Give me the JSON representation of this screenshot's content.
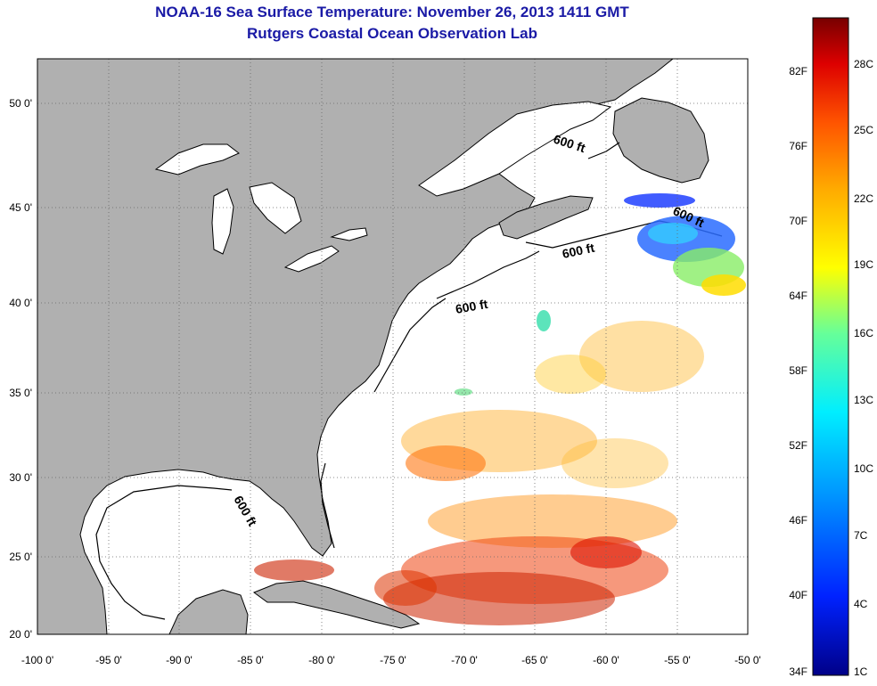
{
  "title_line1": "NOAA-16 Sea Surface Temperature:  November 26, 2013 1411 GMT",
  "title_line2": "Rutgers Coastal Ocean Observation Lab",
  "map": {
    "lon_ticks": [
      "-100 0'",
      "-95 0'",
      "-90 0'",
      "-85 0'",
      "-80 0'",
      "-75 0'",
      "-70 0'",
      "-65 0'",
      "-60 0'",
      "-55 0'",
      "-50 0'"
    ],
    "lat_ticks": [
      "50 0'",
      "45 0'",
      "40 0'",
      "35 0'",
      "30 0'",
      "25 0'",
      "20 0'"
    ],
    "contour_labels": [
      "600 ft",
      "600 ft",
      "600 ft",
      "600 ft",
      "600 ft"
    ],
    "land_color": "#b0b0b0",
    "ocean_color": "#ffffff"
  },
  "colorbar": {
    "fahrenheit_labels": [
      "82F",
      "76F",
      "70F",
      "64F",
      "58F",
      "52F",
      "46F",
      "40F",
      "34F"
    ],
    "celsius_labels": [
      "28C",
      "25C",
      "22C",
      "19C",
      "16C",
      "13C",
      "10C",
      "7C",
      "4C",
      "1C"
    ],
    "colors": [
      "#6b0000",
      "#b30000",
      "#ff1a00",
      "#ff6600",
      "#ffaa00",
      "#ffee00",
      "#aaff55",
      "#33ffcc",
      "#00ccff",
      "#0077ff",
      "#0022ff",
      "#000088"
    ]
  }
}
